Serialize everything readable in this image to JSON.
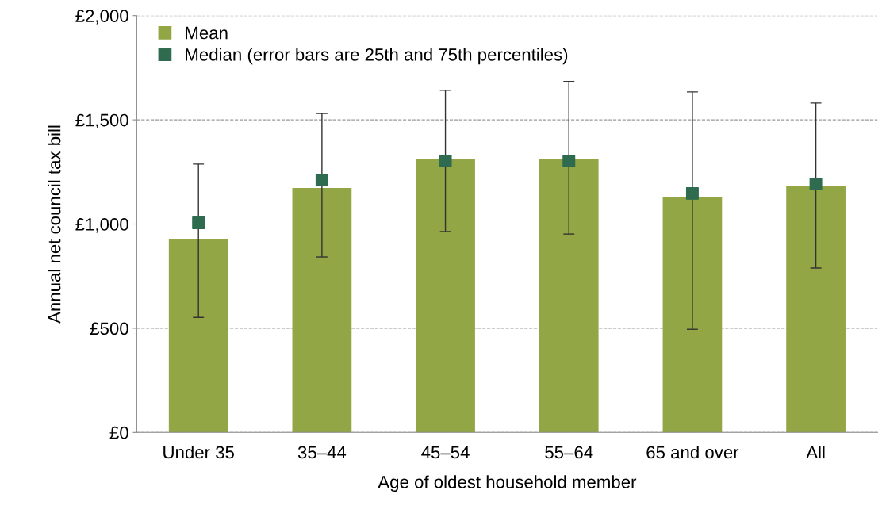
{
  "chart_data": {
    "type": "bar",
    "xlabel": "Age of oldest household member",
    "ylabel": "Annual net council tax bill",
    "categories": [
      "Under 35",
      "35–44",
      "45–54",
      "55–64",
      "65 and over",
      "All"
    ],
    "series": [
      {
        "name": "Mean",
        "color": "#92a645",
        "values": [
          929,
          1173,
          1310,
          1314,
          1128,
          1185
        ]
      },
      {
        "name": "Median (error bars are 25th and 75th percentiles)",
        "type": "scatter",
        "color": "#2e6b4f",
        "marker": "square",
        "x": [
          "Under 35",
          "35–44",
          "45–54",
          "55–64",
          "65 and over",
          "All"
        ],
        "values": [
          1006,
          1211,
          1303,
          1303,
          1147,
          1192
        ],
        "errors": [
          [
            552,
            1288
          ],
          [
            842,
            1531
          ],
          [
            964,
            1642
          ],
          [
            952,
            1684
          ],
          [
            495,
            1634
          ],
          [
            789,
            1581
          ]
        ]
      }
    ],
    "ylim": [
      0,
      2000
    ],
    "yticks": [
      {
        "value": 0,
        "label": "£0"
      },
      {
        "value": 500,
        "label": "£500"
      },
      {
        "value": 1000,
        "label": "£1,000"
      },
      {
        "value": 1500,
        "label": "£1,500"
      },
      {
        "value": 2000,
        "label": "£2,000"
      }
    ],
    "grid": "y",
    "legend": "top left"
  }
}
